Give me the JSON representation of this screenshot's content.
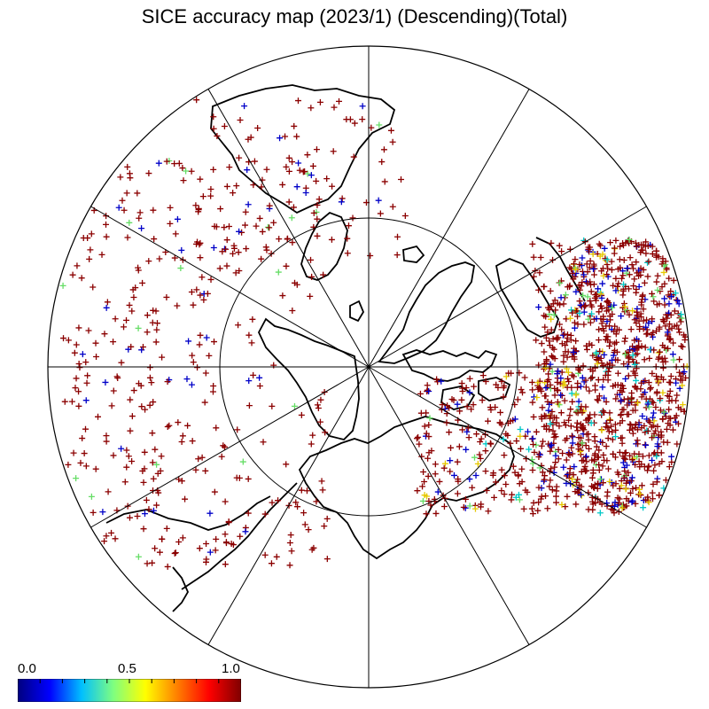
{
  "title": "SICE accuracy map (2023/1) (Descending)(Total)",
  "map": {
    "projection": "polar-stereographic-north",
    "meridian_lines": 12,
    "inner_circle": "latitude circle around pole",
    "coastline_color": "#000000",
    "marker": "plus"
  },
  "colorbar": {
    "min_label": "0.0",
    "mid_label": "0.5",
    "max_label": "1.0",
    "min": 0.0,
    "max": 1.0,
    "colormap": "jet",
    "ticks": [
      0.0,
      0.1,
      0.2,
      0.3,
      0.4,
      0.5,
      0.6,
      0.7,
      0.8,
      0.9,
      1.0
    ],
    "stops": [
      "#00007f",
      "#0000ff",
      "#00bfff",
      "#7fff7f",
      "#ffff00",
      "#ff7f00",
      "#ff0000",
      "#7f0000"
    ]
  },
  "marker_colors": {
    "dominant": "#8b0000",
    "blue": "#0000c8",
    "green": "#66dd66",
    "yellow": "#e6c800",
    "cyan": "#00c8c8"
  }
}
